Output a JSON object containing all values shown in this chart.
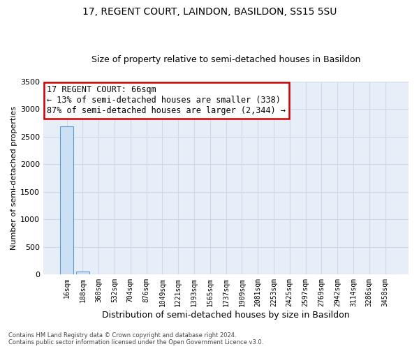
{
  "title": "17, REGENT COURT, LAINDON, BASILDON, SS15 5SU",
  "subtitle": "Size of property relative to semi-detached houses in Basildon",
  "xlabel": "Distribution of semi-detached houses by size in Basildon",
  "ylabel": "Number of semi-detached properties",
  "footnote1": "Contains HM Land Registry data © Crown copyright and database right 2024.",
  "footnote2": "Contains public sector information licensed under the Open Government Licence v3.0.",
  "bin_labels": [
    "16sqm",
    "188sqm",
    "360sqm",
    "532sqm",
    "704sqm",
    "876sqm",
    "1049sqm",
    "1221sqm",
    "1393sqm",
    "1565sqm",
    "1737sqm",
    "1909sqm",
    "2081sqm",
    "2253sqm",
    "2425sqm",
    "2597sqm",
    "2769sqm",
    "2942sqm",
    "3114sqm",
    "3286sqm",
    "3458sqm"
  ],
  "bar_heights": [
    2682,
    50,
    0,
    0,
    0,
    0,
    0,
    0,
    0,
    0,
    0,
    0,
    0,
    0,
    0,
    0,
    0,
    0,
    0,
    0,
    0
  ],
  "bar_color": "#cce0f5",
  "bar_edge_color": "#5b9bd5",
  "annotation_line1": "17 REGENT COURT: 66sqm",
  "annotation_line2": "← 13% of semi-detached houses are smaller (338)",
  "annotation_line3": "87% of semi-detached houses are larger (2,344) →",
  "annotation_box_color": "#ffffff",
  "annotation_box_edge_color": "#cc0000",
  "ylim": [
    0,
    3500
  ],
  "yticks": [
    0,
    500,
    1000,
    1500,
    2000,
    2500,
    3000,
    3500
  ],
  "grid_color": "#d0d8e8",
  "bg_color": "#e8eef8",
  "title_fontsize": 10,
  "subtitle_fontsize": 9,
  "axis_label_fontsize": 8,
  "tick_fontsize": 7,
  "annotation_fontsize": 8.5
}
